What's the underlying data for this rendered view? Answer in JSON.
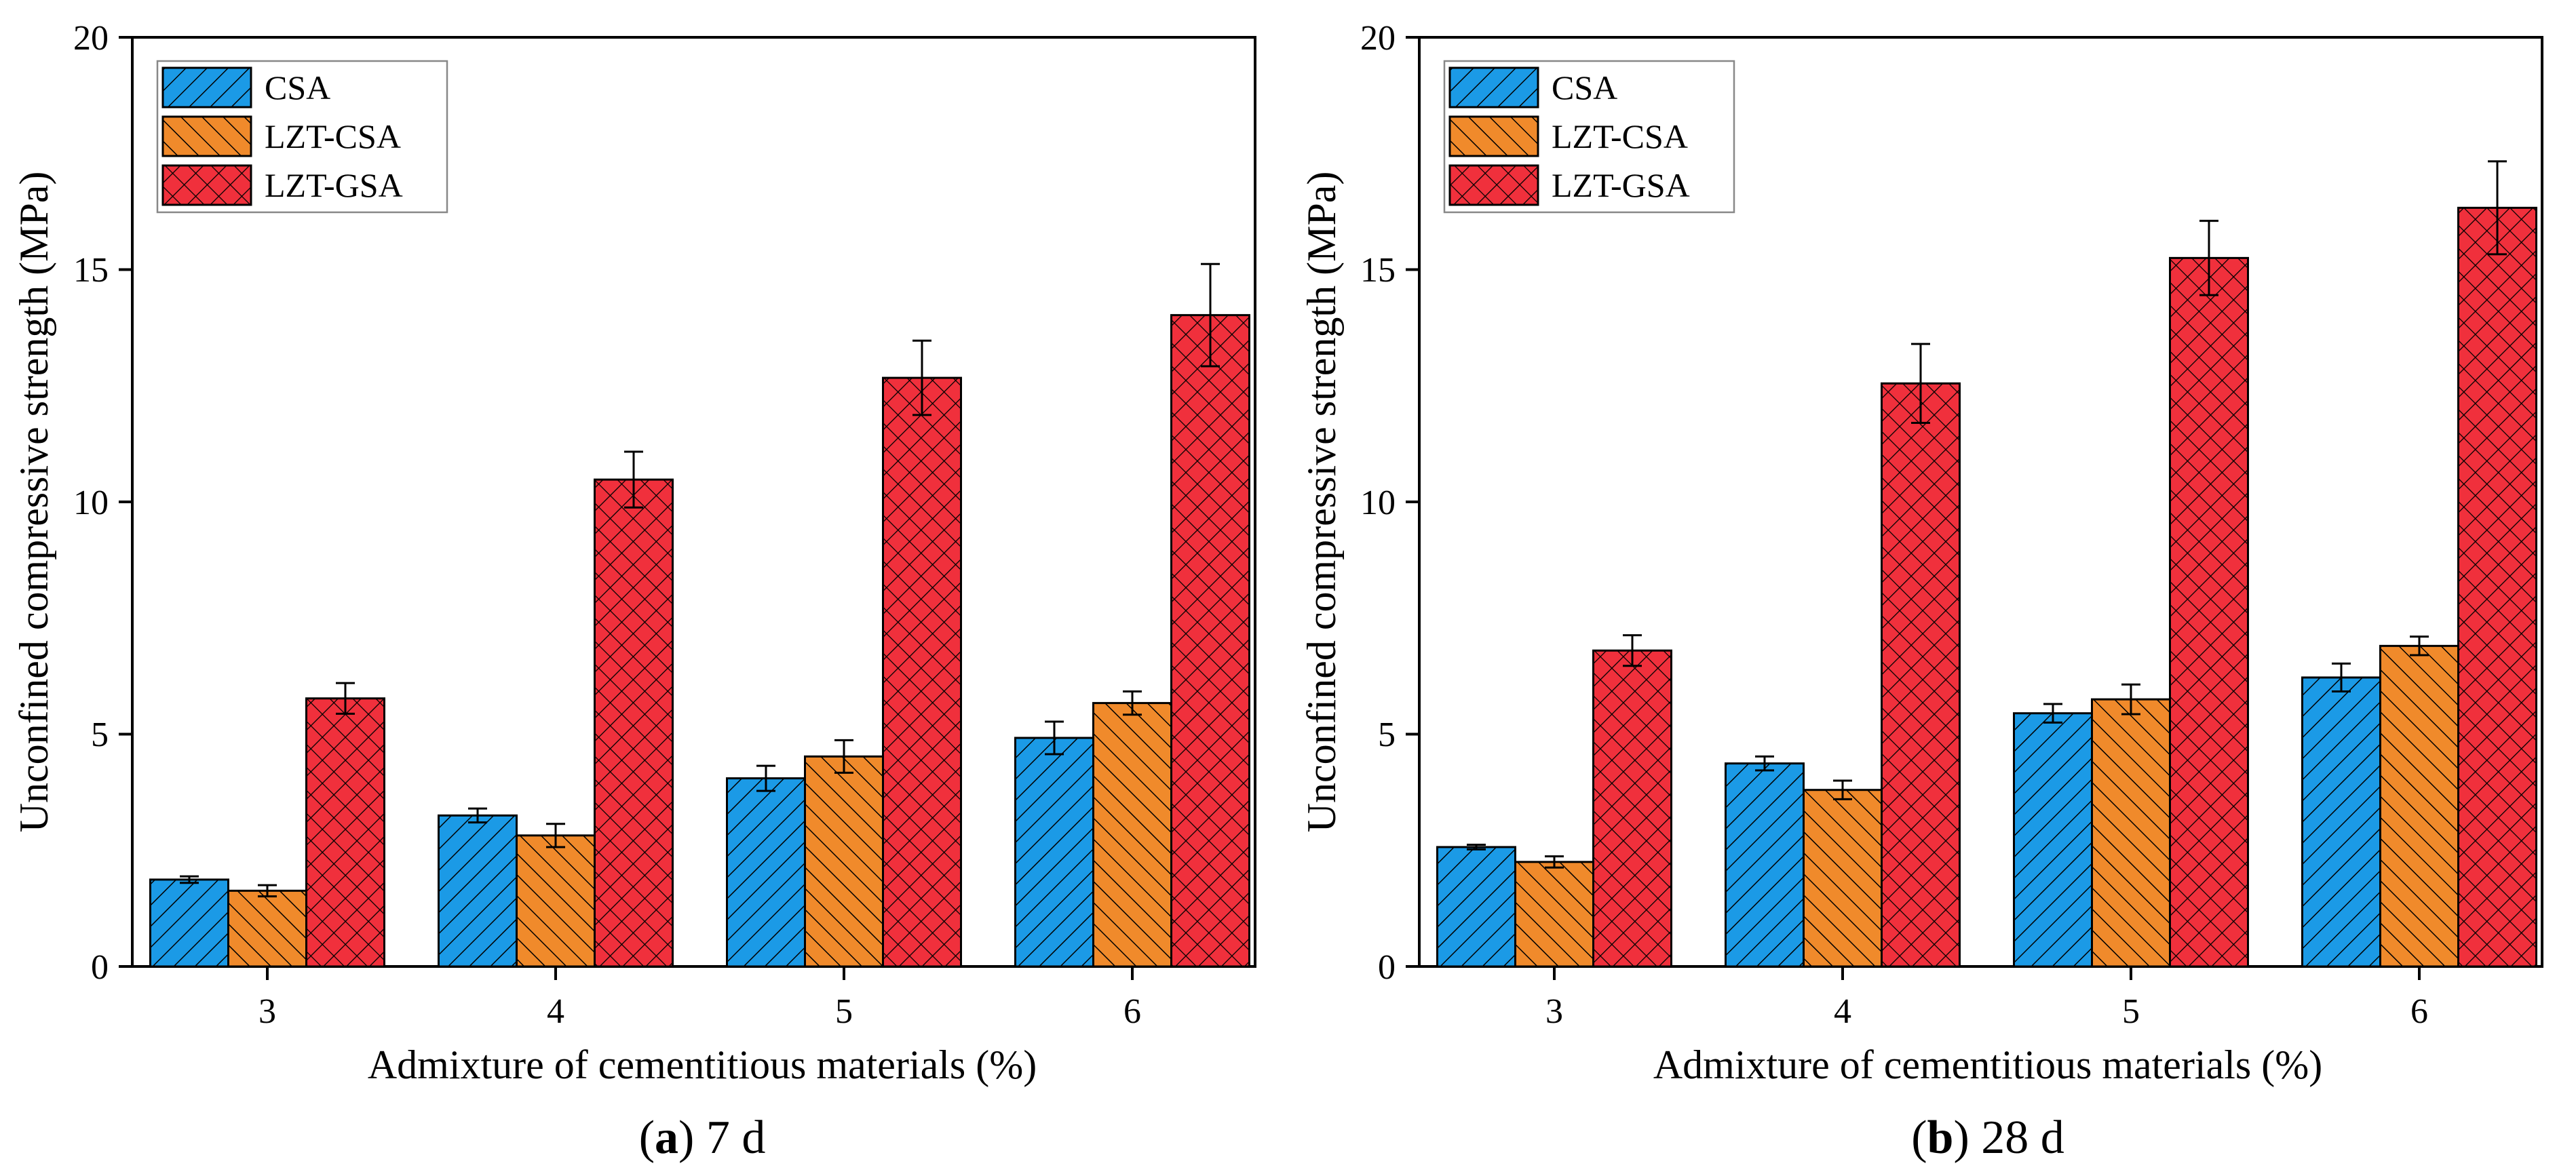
{
  "chart_data": [
    {
      "type": "bar",
      "caption_letter": "a",
      "caption_text": " 7 d",
      "xlabel": "Admixture of cementitious materials (%)",
      "ylabel": "Unconfined compressive strength (MPa)",
      "ylim": [
        0,
        20
      ],
      "yticks": [
        "0",
        "5",
        "10",
        "15",
        "20"
      ],
      "categories": [
        "3",
        "4",
        "5",
        "6"
      ],
      "legend_position": "top-left",
      "series": [
        {
          "name": "CSA",
          "color": "#1b9ae6",
          "hatch": "diagonal",
          "values": [
            1.87,
            3.25,
            4.05,
            4.92
          ],
          "errors": [
            0.07,
            0.15,
            0.27,
            0.35
          ]
        },
        {
          "name": "LZT-CSA",
          "color": "#f08a2b",
          "hatch": "cross-diagonal",
          "values": [
            1.63,
            2.82,
            4.52,
            5.67
          ],
          "errors": [
            0.12,
            0.25,
            0.35,
            0.25
          ]
        },
        {
          "name": "LZT-GSA",
          "color": "#f0303c",
          "hatch": "crosshatch",
          "values": [
            5.77,
            10.48,
            12.67,
            14.02
          ],
          "errors": [
            0.33,
            0.6,
            0.8,
            1.1
          ]
        }
      ]
    },
    {
      "type": "bar",
      "caption_letter": "b",
      "caption_text": " 28 d",
      "xlabel": "Admixture of cementitious materials (%)",
      "ylabel": "Unconfined compressive strength (MPa)",
      "ylim": [
        0,
        20
      ],
      "yticks": [
        "0",
        "5",
        "10",
        "15",
        "20"
      ],
      "categories": [
        "3",
        "4",
        "5",
        "6"
      ],
      "legend_position": "top-left",
      "series": [
        {
          "name": "CSA",
          "color": "#1b9ae6",
          "hatch": "diagonal",
          "values": [
            2.57,
            4.37,
            5.45,
            6.22
          ],
          "errors": [
            0.05,
            0.15,
            0.2,
            0.3
          ]
        },
        {
          "name": "LZT-CSA",
          "color": "#f08a2b",
          "hatch": "cross-diagonal",
          "values": [
            2.25,
            3.8,
            5.75,
            6.9
          ],
          "errors": [
            0.12,
            0.2,
            0.32,
            0.2
          ]
        },
        {
          "name": "LZT-GSA",
          "color": "#f0303c",
          "hatch": "crosshatch",
          "values": [
            6.8,
            12.55,
            15.25,
            16.33
          ],
          "errors": [
            0.33,
            0.85,
            0.8,
            1.0
          ]
        }
      ]
    }
  ]
}
